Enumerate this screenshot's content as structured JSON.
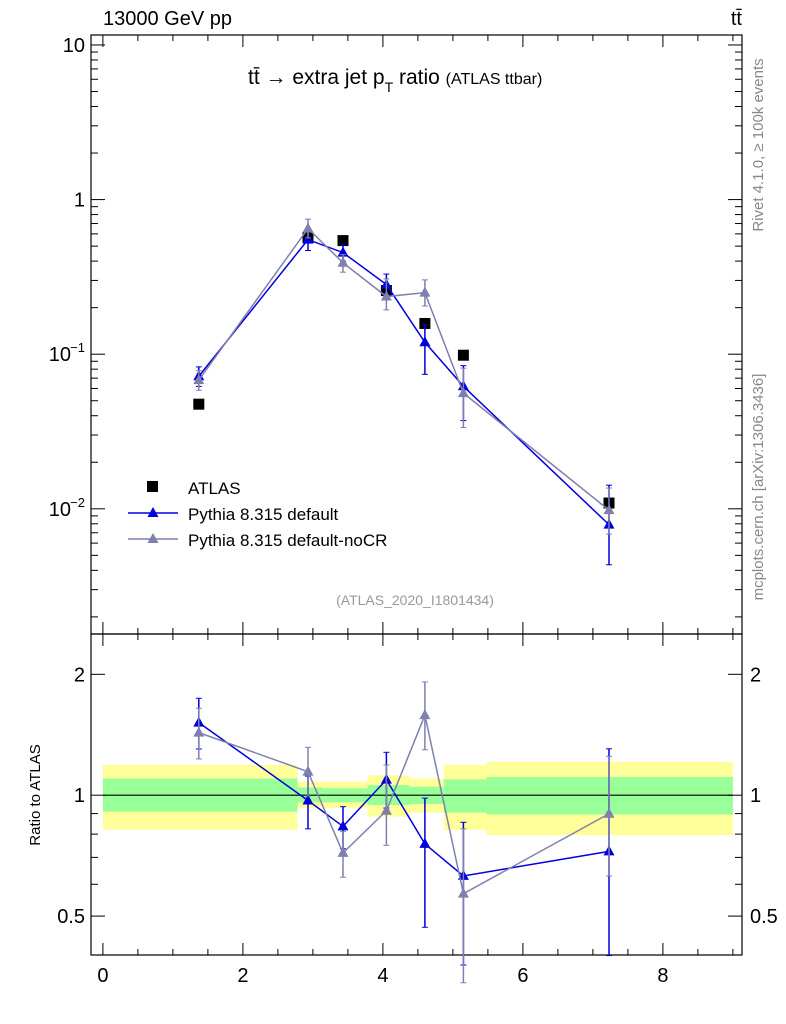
{
  "header": {
    "energy_label": "13000 GeV pp",
    "process_label": "tt̄"
  },
  "side": {
    "rivet_label": "Rivet 4.1.0, ≥ 100k events",
    "mcplots_label": "mcplots.cern.ch [arXiv:1306.3436]"
  },
  "chart_data": {
    "type": "scatter",
    "title": "tt̄ → extra jet p",
    "title_sub": "T",
    "title_tail": " ratio",
    "title_small": "(ATLAS ttbar)",
    "analysis_label": "(ATLAS_2020_I1801434)",
    "ylabel_ratio": "Ratio to ATLAS",
    "xlim": [
      -0.17,
      9.13
    ],
    "ylim": [
      0.00155,
      11.6
    ],
    "ratio_ylim": [
      0.4,
      2.52
    ],
    "yscale": "log",
    "x_ticks": [
      "0",
      "2",
      "4",
      "6",
      "8"
    ],
    "x_tick_values": [
      0,
      2,
      4,
      6,
      8
    ],
    "y_ticks": [
      {
        "v": 10,
        "label": "10"
      },
      {
        "v": 1,
        "label": "1"
      },
      {
        "v": 0.1,
        "label": "10",
        "exp": "−1"
      },
      {
        "v": 0.01,
        "label": "10",
        "exp": "−2"
      }
    ],
    "ratio_ticks": [
      {
        "v": 2,
        "label": "2"
      },
      {
        "v": 1,
        "label": "1"
      },
      {
        "v": 0.5,
        "label": "0.5"
      }
    ],
    "legend_position": "bottom-left",
    "x": [
      1.37,
      2.93,
      3.43,
      4.05,
      4.6,
      5.15,
      7.23
    ],
    "series": [
      {
        "name": "ATLAS",
        "color": "#000000",
        "marker": "square",
        "values": [
          0.0475,
          0.568,
          0.543,
          0.258,
          0.158,
          0.0985,
          0.0109
        ]
      },
      {
        "name": "Pythia 8.315 default",
        "color": "#0000dd",
        "marker": "triangle",
        "values": [
          0.072,
          0.551,
          0.454,
          0.282,
          0.1195,
          0.062,
          0.0079
        ],
        "err_hi": [
          1.15,
          1.15,
          1.12,
          1.17,
          1.3,
          1.36,
          1.8
        ],
        "err_lo": [
          0.86,
          0.85,
          0.88,
          0.85,
          0.62,
          0.6,
          0.55
        ]
      },
      {
        "name": "Pythia 8.315 default-noCR",
        "color": "#7f7fb0",
        "marker": "triangle",
        "values": [
          0.068,
          0.65,
          0.39,
          0.236,
          0.25,
          0.056,
          0.0098
        ],
        "err_hi": [
          1.15,
          1.15,
          1.13,
          1.3,
          1.21,
          1.45,
          1.39
        ],
        "err_lo": [
          0.86,
          0.87,
          0.87,
          0.82,
          0.82,
          0.6,
          0.7
        ]
      }
    ],
    "bands": {
      "edges": [
        0,
        2.78,
        3.13,
        3.78,
        4.38,
        4.87,
        5.48,
        9.0
      ],
      "yellow_hi": [
        1.19,
        1.08,
        1.08,
        1.12,
        1.1,
        1.19,
        1.21
      ],
      "yellow_lo": [
        0.82,
        0.93,
        0.93,
        0.885,
        0.905,
        0.82,
        0.795
      ],
      "green_hi": [
        1.1,
        1.045,
        1.04,
        1.06,
        1.05,
        1.095,
        1.11
      ],
      "green_lo": [
        0.91,
        0.96,
        0.96,
        0.945,
        0.95,
        0.905,
        0.895
      ],
      "yellow_color": "#ffff99",
      "green_color": "#99ff99"
    }
  }
}
